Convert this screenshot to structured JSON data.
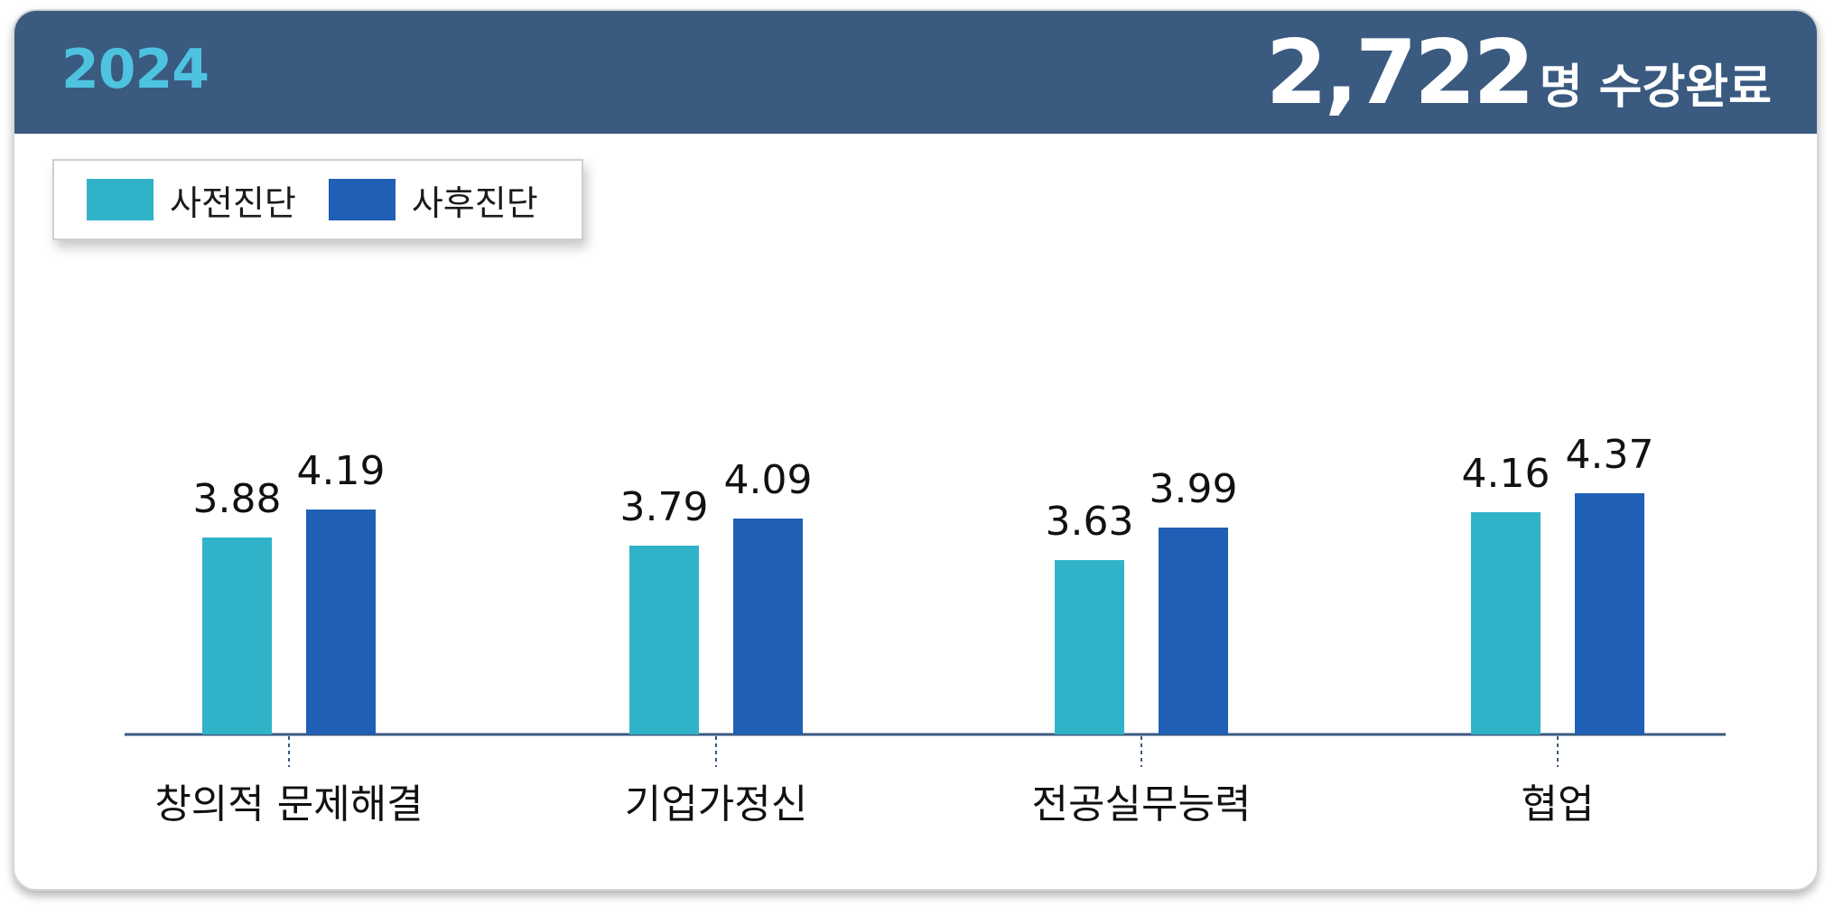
{
  "header": {
    "year": "2024",
    "count": "2,722",
    "count_suffix": "명 수강완료"
  },
  "colors": {
    "header_bg": "#3a5a80",
    "year_text": "#4ec3e0",
    "pre": "#30b3c9",
    "post": "#1f5fb5",
    "axis": "#3a5a80"
  },
  "chart_data": {
    "type": "bar",
    "categories": [
      "창의적 문제해결",
      "기업가정신",
      "전공실무능력",
      "협업"
    ],
    "series": [
      {
        "name": "사전진단",
        "values": [
          3.88,
          3.79,
          3.63,
          4.16
        ]
      },
      {
        "name": "사후진단",
        "values": [
          4.19,
          4.09,
          3.99,
          4.37
        ]
      }
    ],
    "legend_position": "top-left",
    "grid": false
  }
}
